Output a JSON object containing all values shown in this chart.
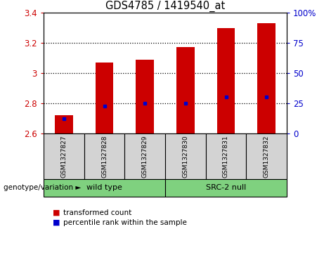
{
  "title": "GDS4785 / 1419540_at",
  "samples": [
    "GSM1327827",
    "GSM1327828",
    "GSM1327829",
    "GSM1327830",
    "GSM1327831",
    "GSM1327832"
  ],
  "red_values": [
    2.72,
    3.07,
    3.09,
    3.17,
    3.3,
    3.33
  ],
  "blue_values": [
    2.7,
    2.78,
    2.8,
    2.8,
    2.84,
    2.84
  ],
  "ymin": 2.6,
  "ymax": 3.4,
  "yticks_left": [
    2.6,
    2.8,
    3.0,
    3.2,
    3.4
  ],
  "ytick_labels_left": [
    "2.6",
    "2.8",
    "3",
    "3.2",
    "3.4"
  ],
  "yticks_right_vals": [
    0,
    25,
    50,
    75,
    100
  ],
  "ytick_labels_right": [
    "0",
    "25",
    "50",
    "75",
    "100%"
  ],
  "legend_red": "transformed count",
  "legend_blue": "percentile rank within the sample",
  "bar_color": "#CC0000",
  "dot_color": "#0000CC",
  "bar_width": 0.45,
  "background_color": "#ffffff",
  "label_color_left": "#CC0000",
  "label_color_right": "#0000CC",
  "sample_box_color": "#D3D3D3",
  "group_box_color": "#7FD17F",
  "wt_label": "wild type",
  "src_label": "SRC-2 null",
  "genotype_label": "genotype/variation",
  "grid_dotted_at": [
    2.8,
    3.0,
    3.2
  ]
}
